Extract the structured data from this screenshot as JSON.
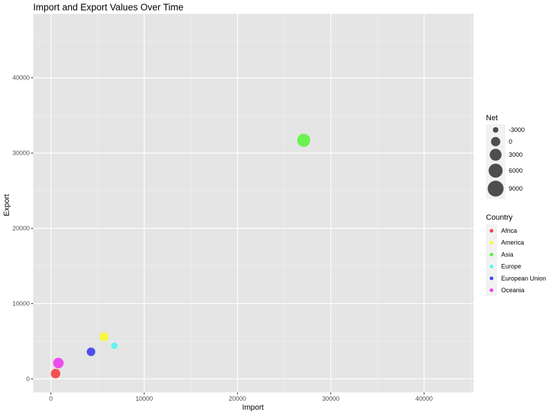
{
  "chart_data": {
    "type": "scatter",
    "title": "Import and Export Values Over Time",
    "xlabel": "Import",
    "ylabel": "Export",
    "xlim": [
      -1900,
      45300
    ],
    "ylim": [
      -1800,
      48500
    ],
    "x_ticks": [
      0,
      10000,
      20000,
      30000,
      40000
    ],
    "y_ticks": [
      0,
      10000,
      20000,
      30000,
      40000
    ],
    "grid": true,
    "points": [
      {
        "country": "Africa",
        "import": 500,
        "export": 700,
        "net": 200
      },
      {
        "country": "America",
        "import": 5700,
        "export": 5600,
        "net": -100
      },
      {
        "country": "Asia",
        "import": 27100,
        "export": 31700,
        "net": 4600
      },
      {
        "country": "Europe",
        "import": 6800,
        "export": 4400,
        "net": -2400
      },
      {
        "country": "European Union",
        "import": 4300,
        "export": 3600,
        "net": -700
      },
      {
        "country": "Oceania",
        "import": 800,
        "export": 2100,
        "net": 1300
      }
    ],
    "legend_size": {
      "title": "Net",
      "position": "right",
      "values": [
        -3000,
        0,
        3000,
        6000,
        9000
      ],
      "labels": [
        "-3000",
        "0",
        "3000",
        "6000",
        "9000"
      ],
      "color": "#444444"
    },
    "legend_color": {
      "title": "Country",
      "position": "right",
      "entries": [
        {
          "name": "Africa",
          "color": "#F44040"
        },
        {
          "name": "America",
          "color": "#F7F736"
        },
        {
          "name": "Asia",
          "color": "#5CF43E"
        },
        {
          "name": "Europe",
          "color": "#56F4F0"
        },
        {
          "name": "European Union",
          "color": "#3F3FF0"
        },
        {
          "name": "Oceania",
          "color": "#EE3CEE"
        }
      ]
    },
    "colors": {
      "panel": "#E5E5E5",
      "grid_major": "#FFFFFF",
      "grid_minor": "#F2F2F2",
      "axis_text": "#4D4D4D",
      "text": "#000000",
      "legend_key_bg": "#F2F2F2"
    }
  }
}
